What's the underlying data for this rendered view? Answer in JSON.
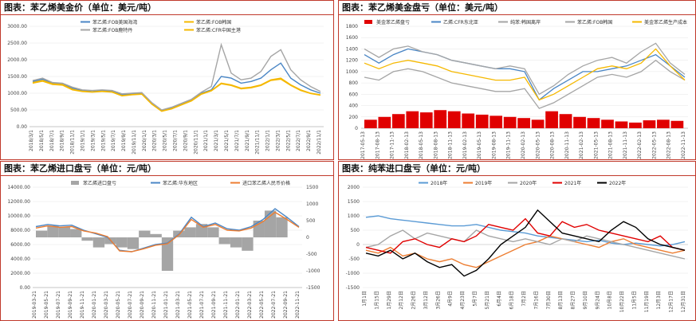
{
  "colors": {
    "border": "#c0392b",
    "blue": "#4a86c5",
    "gray": "#a5a5a5",
    "yellow": "#f5b800",
    "orange": "#ed7d31",
    "red": "#e00000",
    "black": "#000000",
    "lightblue": "#5b9bd5"
  },
  "panels": [
    {
      "id": "p1",
      "title": "图表：苯乙烯美金价（单位：美元/吨）"
    },
    {
      "id": "p2",
      "title": "图表：苯乙烯美金盘亏（单位：美元/吨）"
    },
    {
      "id": "p3",
      "title": "图表：苯乙烯进口盘亏（单位：元/吨）"
    },
    {
      "id": "p4",
      "title": "图表：纯苯进口盘亏（单位：元/吨）"
    }
  ],
  "chart_data": [
    {
      "type": "line",
      "ylim": [
        0,
        3000
      ],
      "yticks": [
        "3000.00",
        "2500.00",
        "2000.00",
        "1500.00",
        "1000.00",
        "500.00",
        "0.00"
      ],
      "xticks": [
        "2018/3/1",
        "2018/5/1",
        "2018/7/1",
        "2018/9/1",
        "2018/11/1",
        "2019/1/1",
        "2019/3/1",
        "2019/5/1",
        "2019/7/1",
        "2019/9/1",
        "2019/11/1",
        "2020/1/1",
        "2020/3/1",
        "2020/5/1",
        "2020/7/1",
        "2020/9/1",
        "2020/11/1",
        "2021/1/1",
        "2021/3/1",
        "2021/5/1",
        "2021/7/1",
        "2021/9/1",
        "2021/11/1",
        "2022/1/1",
        "2022/3/1",
        "2022/5/1",
        "2022/7/1",
        "2022/9/1",
        "2022/11/1"
      ],
      "series": [
        {
          "name": "苯乙烯:FOB美国海湾",
          "color": "#4a86c5",
          "values": [
            1350,
            1420,
            1300,
            1280,
            1150,
            1080,
            1050,
            1080,
            1060,
            950,
            980,
            1000,
            700,
            480,
            560,
            680,
            800,
            1000,
            1100,
            1500,
            1450,
            1300,
            1350,
            1450,
            1700,
            1900,
            1450,
            1250,
            1100,
            1000
          ]
        },
        {
          "name": "苯乙烯:FOB韩国",
          "color": "#f5b800",
          "values": [
            1320,
            1380,
            1280,
            1260,
            1120,
            1060,
            1040,
            1060,
            1040,
            930,
            960,
            980,
            680,
            470,
            540,
            660,
            780,
            980,
            1080,
            1300,
            1250,
            1150,
            1180,
            1250,
            1400,
            1450,
            1250,
            1100,
            1000,
            950
          ]
        },
        {
          "name": "苯乙烯:FOB鹿特丹",
          "color": "#a5a5a5",
          "values": [
            1380,
            1450,
            1320,
            1300,
            1180,
            1100,
            1080,
            1100,
            1080,
            980,
            1000,
            1020,
            720,
            500,
            580,
            700,
            820,
            1030,
            1200,
            2450,
            1600,
            1400,
            1450,
            1650,
            2100,
            2300,
            1700,
            1400,
            1200,
            1050
          ]
        },
        {
          "name": "苯乙烯:CFR中国主港",
          "color": "#f5b800",
          "values": [
            1300,
            1360,
            1260,
            1240,
            1100,
            1050,
            1030,
            1050,
            1030,
            920,
            950,
            970,
            670,
            460,
            530,
            650,
            770,
            970,
            1070,
            1280,
            1230,
            1130,
            1160,
            1230,
            1380,
            1420,
            1230,
            1080,
            990,
            940
          ]
        }
      ]
    },
    {
      "type": "line",
      "ylim": [
        0,
        1800
      ],
      "yticks": [
        "1800",
        "1600",
        "1400",
        "1200",
        "1000",
        "800",
        "600",
        "400",
        "200",
        "0"
      ],
      "xticks": [
        "2017-05-13",
        "2017-08-13",
        "2017-11-13",
        "2018-02-13",
        "2018-05-13",
        "2018-08-13",
        "2018-11-13",
        "2019-02-13",
        "2019-05-13",
        "2019-08-13",
        "2019-11-13",
        "2020-02-13",
        "2020-05-13",
        "2020-08-13",
        "2020-11-13",
        "2021-02-13",
        "2021-05-13",
        "2021-08-13",
        "2021-11-13",
        "2022-02-13",
        "2022-05-13",
        "2022-08-13",
        "2022-11-13"
      ],
      "series": [
        {
          "name": "美金苯乙烯盘亏",
          "color": "#e00000",
          "values": [
            150,
            200,
            250,
            300,
            280,
            320,
            300,
            260,
            240,
            220,
            200,
            180,
            150,
            300,
            250,
            200,
            180,
            150,
            120,
            100,
            140,
            150,
            130
          ]
        },
        {
          "name": "乙烯:CFR东北亚",
          "color": "#4a86c5",
          "values": [
            1300,
            1150,
            1300,
            1400,
            1350,
            1300,
            1200,
            1150,
            1100,
            1050,
            1050,
            1000,
            500,
            700,
            850,
            1000,
            1000,
            1050,
            1100,
            1200,
            1300,
            1100,
            900
          ]
        },
        {
          "name": "纯苯:韩国离岸",
          "color": "#a5a5a5",
          "values": [
            900,
            850,
            1000,
            1050,
            1000,
            900,
            800,
            750,
            700,
            650,
            650,
            700,
            350,
            450,
            600,
            750,
            900,
            950,
            900,
            1000,
            1200,
            1000,
            850
          ]
        },
        {
          "name": "苯乙烯:FOB韩国",
          "color": "#a5a5a5",
          "values": [
            1400,
            1250,
            1400,
            1450,
            1350,
            1300,
            1200,
            1150,
            1100,
            1050,
            1100,
            1050,
            600,
            750,
            950,
            1100,
            1200,
            1250,
            1150,
            1350,
            1500,
            1150,
            950
          ]
        },
        {
          "name": "美金苯乙烯生产成本",
          "color": "#f5b800",
          "values": [
            1150,
            1050,
            1150,
            1200,
            1150,
            1100,
            1000,
            950,
            900,
            850,
            850,
            900,
            500,
            600,
            750,
            900,
            1050,
            1100,
            1050,
            1150,
            1400,
            1100,
            850
          ]
        }
      ]
    },
    {
      "type": "line",
      "ylim": [
        0,
        14000
      ],
      "y2lim": [
        -1500,
        1500
      ],
      "yticks": [
        "14000.00",
        "12000.00",
        "10000.00",
        "8000.00",
        "6000.00",
        "4000.00",
        "2000.00",
        "0.00"
      ],
      "y2ticks": [
        "1500",
        "1000",
        "500",
        "0",
        "-500",
        "-1000",
        "-1500"
      ],
      "xticks": [
        "2019-03-21",
        "2019-05-21",
        "2019-07-21",
        "2019-09-21",
        "2019-11-21",
        "2020-01-21",
        "2020-03-21",
        "2020-05-21",
        "2020-07-21",
        "2020-09-21",
        "2020-11-21",
        "2021-01-21",
        "2021-03-21",
        "2021-05-21",
        "2021-07-21",
        "2021-09-21",
        "2021-11-21",
        "2022-01-21",
        "2022-03-21",
        "2022-05-21",
        "2022-07-21",
        "2022-09-21",
        "2022-11-21"
      ],
      "series": [
        {
          "name": "苯乙烯进口盘亏",
          "color": "#a5a5a5",
          "values": [
            200,
            350,
            300,
            250,
            -100,
            -300,
            -200,
            -300,
            -350,
            200,
            100,
            -1000,
            200,
            300,
            400,
            300,
            -200,
            -300,
            -400,
            500,
            800,
            600,
            0
          ]
        },
        {
          "name": "苯乙烯:华东地区",
          "color": "#4a86c5",
          "values": [
            8500,
            8800,
            8600,
            8700,
            8000,
            7500,
            7000,
            5200,
            5000,
            5500,
            6000,
            6200,
            7500,
            9800,
            8500,
            9000,
            8200,
            8000,
            8500,
            9500,
            11000,
            9800,
            8500
          ]
        },
        {
          "name": "进口苯乙烯人民币价格",
          "color": "#ed7d31",
          "values": [
            8300,
            8600,
            8400,
            8500,
            7900,
            7600,
            7100,
            5100,
            5000,
            5400,
            5900,
            6100,
            7400,
            9500,
            8400,
            8800,
            8000,
            7900,
            8300,
            9200,
            10500,
            9500,
            8400
          ]
        }
      ]
    },
    {
      "type": "line",
      "ylim": [
        -1500,
        2000
      ],
      "yticks": [
        "2000",
        "1500",
        "1000",
        "500",
        "0",
        "-500",
        "-1000",
        "-1500"
      ],
      "xticks": [
        "1月1日",
        "1月15日",
        "1月29日",
        "2月12日",
        "2月26日",
        "3月12日",
        "3月26日",
        "4月9日",
        "4月23日",
        "5月7日",
        "5月21日",
        "6月4日",
        "6月18日",
        "7月2日",
        "7月16日",
        "7月30日",
        "8月13日",
        "8月27日",
        "9月10日",
        "9月24日",
        "10月8日",
        "10月22日",
        "11月5日",
        "11月19日",
        "12月3日",
        "12月17日",
        "12月31日"
      ],
      "series": [
        {
          "name": "2018年",
          "color": "#5b9bd5",
          "values": [
            950,
            1000,
            900,
            850,
            800,
            750,
            700,
            650,
            650,
            700,
            600,
            500,
            450,
            400,
            300,
            250,
            200,
            150,
            100,
            150,
            50,
            0,
            50,
            0,
            -50,
            0,
            100
          ]
        },
        {
          "name": "2019年",
          "color": "#ed7d31",
          "values": [
            -200,
            -300,
            -100,
            -400,
            -300,
            -500,
            -600,
            -500,
            -700,
            -800,
            -600,
            -400,
            -200,
            0,
            100,
            300,
            200,
            100,
            0,
            -100,
            100,
            200,
            0,
            -100,
            -200,
            -300,
            -200
          ]
        },
        {
          "name": "2020年",
          "color": "#a5a5a5",
          "values": [
            -100,
            0,
            300,
            500,
            200,
            400,
            300,
            200,
            100,
            500,
            300,
            200,
            100,
            200,
            100,
            0,
            200,
            100,
            300,
            200,
            100,
            0,
            -100,
            -200,
            -300,
            -400,
            -500
          ]
        },
        {
          "name": "2021年",
          "color": "#e00000",
          "values": [
            -100,
            -200,
            -300,
            100,
            200,
            0,
            -100,
            200,
            100,
            300,
            700,
            600,
            500,
            900,
            400,
            300,
            800,
            600,
            700,
            500,
            400,
            300,
            200,
            100,
            300,
            -100,
            -200
          ]
        },
        {
          "name": "2022年",
          "color": "#000000",
          "values": [
            -300,
            -400,
            -200,
            -500,
            -300,
            -600,
            -800,
            -700,
            -1100,
            -900,
            -500,
            0,
            300,
            600,
            1200,
            800,
            400,
            300,
            200,
            100,
            500,
            800,
            600,
            200,
            0,
            -100,
            -200
          ]
        }
      ]
    }
  ]
}
